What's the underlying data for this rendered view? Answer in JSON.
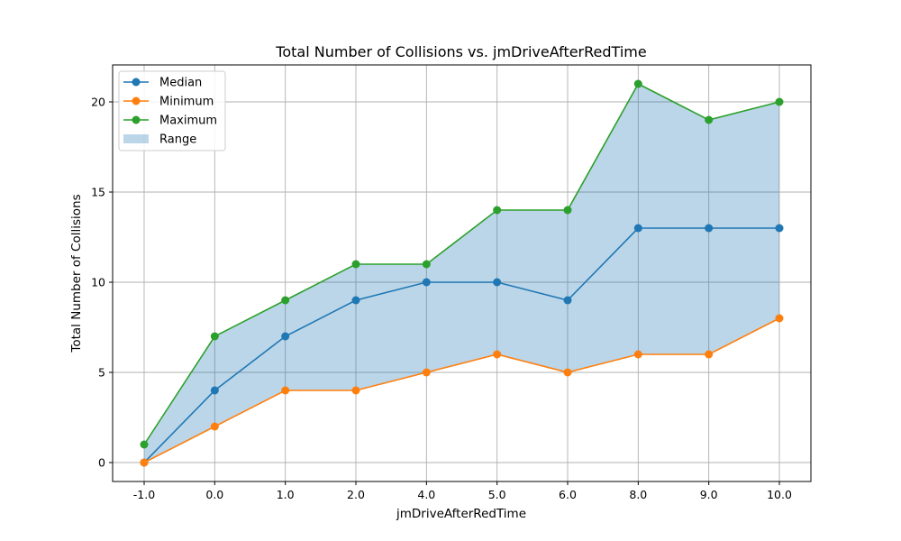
{
  "chart_data": {
    "type": "line",
    "title": "Total Number of Collisions vs. jmDriveAfterRedTime",
    "xlabel": "jmDriveAfterRedTime",
    "ylabel": "Total Number of Collisions",
    "categories": [
      "-1.0",
      "0.0",
      "1.0",
      "2.0",
      "4.0",
      "5.0",
      "6.0",
      "8.0",
      "9.0",
      "10.0"
    ],
    "ylim": [
      -1.05,
      22.05
    ],
    "yticks": [
      0,
      5,
      10,
      15,
      20
    ],
    "grid": true,
    "legend_position": "top-left",
    "series": [
      {
        "name": "Median",
        "color": "#1f77b4",
        "values": [
          0,
          4,
          7,
          9,
          10,
          10,
          9,
          13,
          13,
          13
        ]
      },
      {
        "name": "Minimum",
        "color": "#ff7f0e",
        "values": [
          0,
          2,
          4,
          4,
          5,
          6,
          5,
          6,
          6,
          8
        ]
      },
      {
        "name": "Maximum",
        "color": "#2ca02c",
        "values": [
          1,
          7,
          9,
          11,
          11,
          14,
          14,
          21,
          19,
          20
        ]
      }
    ],
    "range_fill": {
      "name": "Range",
      "color": "#1f77b4",
      "opacity": 0.3,
      "lower_series": "Minimum",
      "upper_series": "Maximum"
    }
  }
}
